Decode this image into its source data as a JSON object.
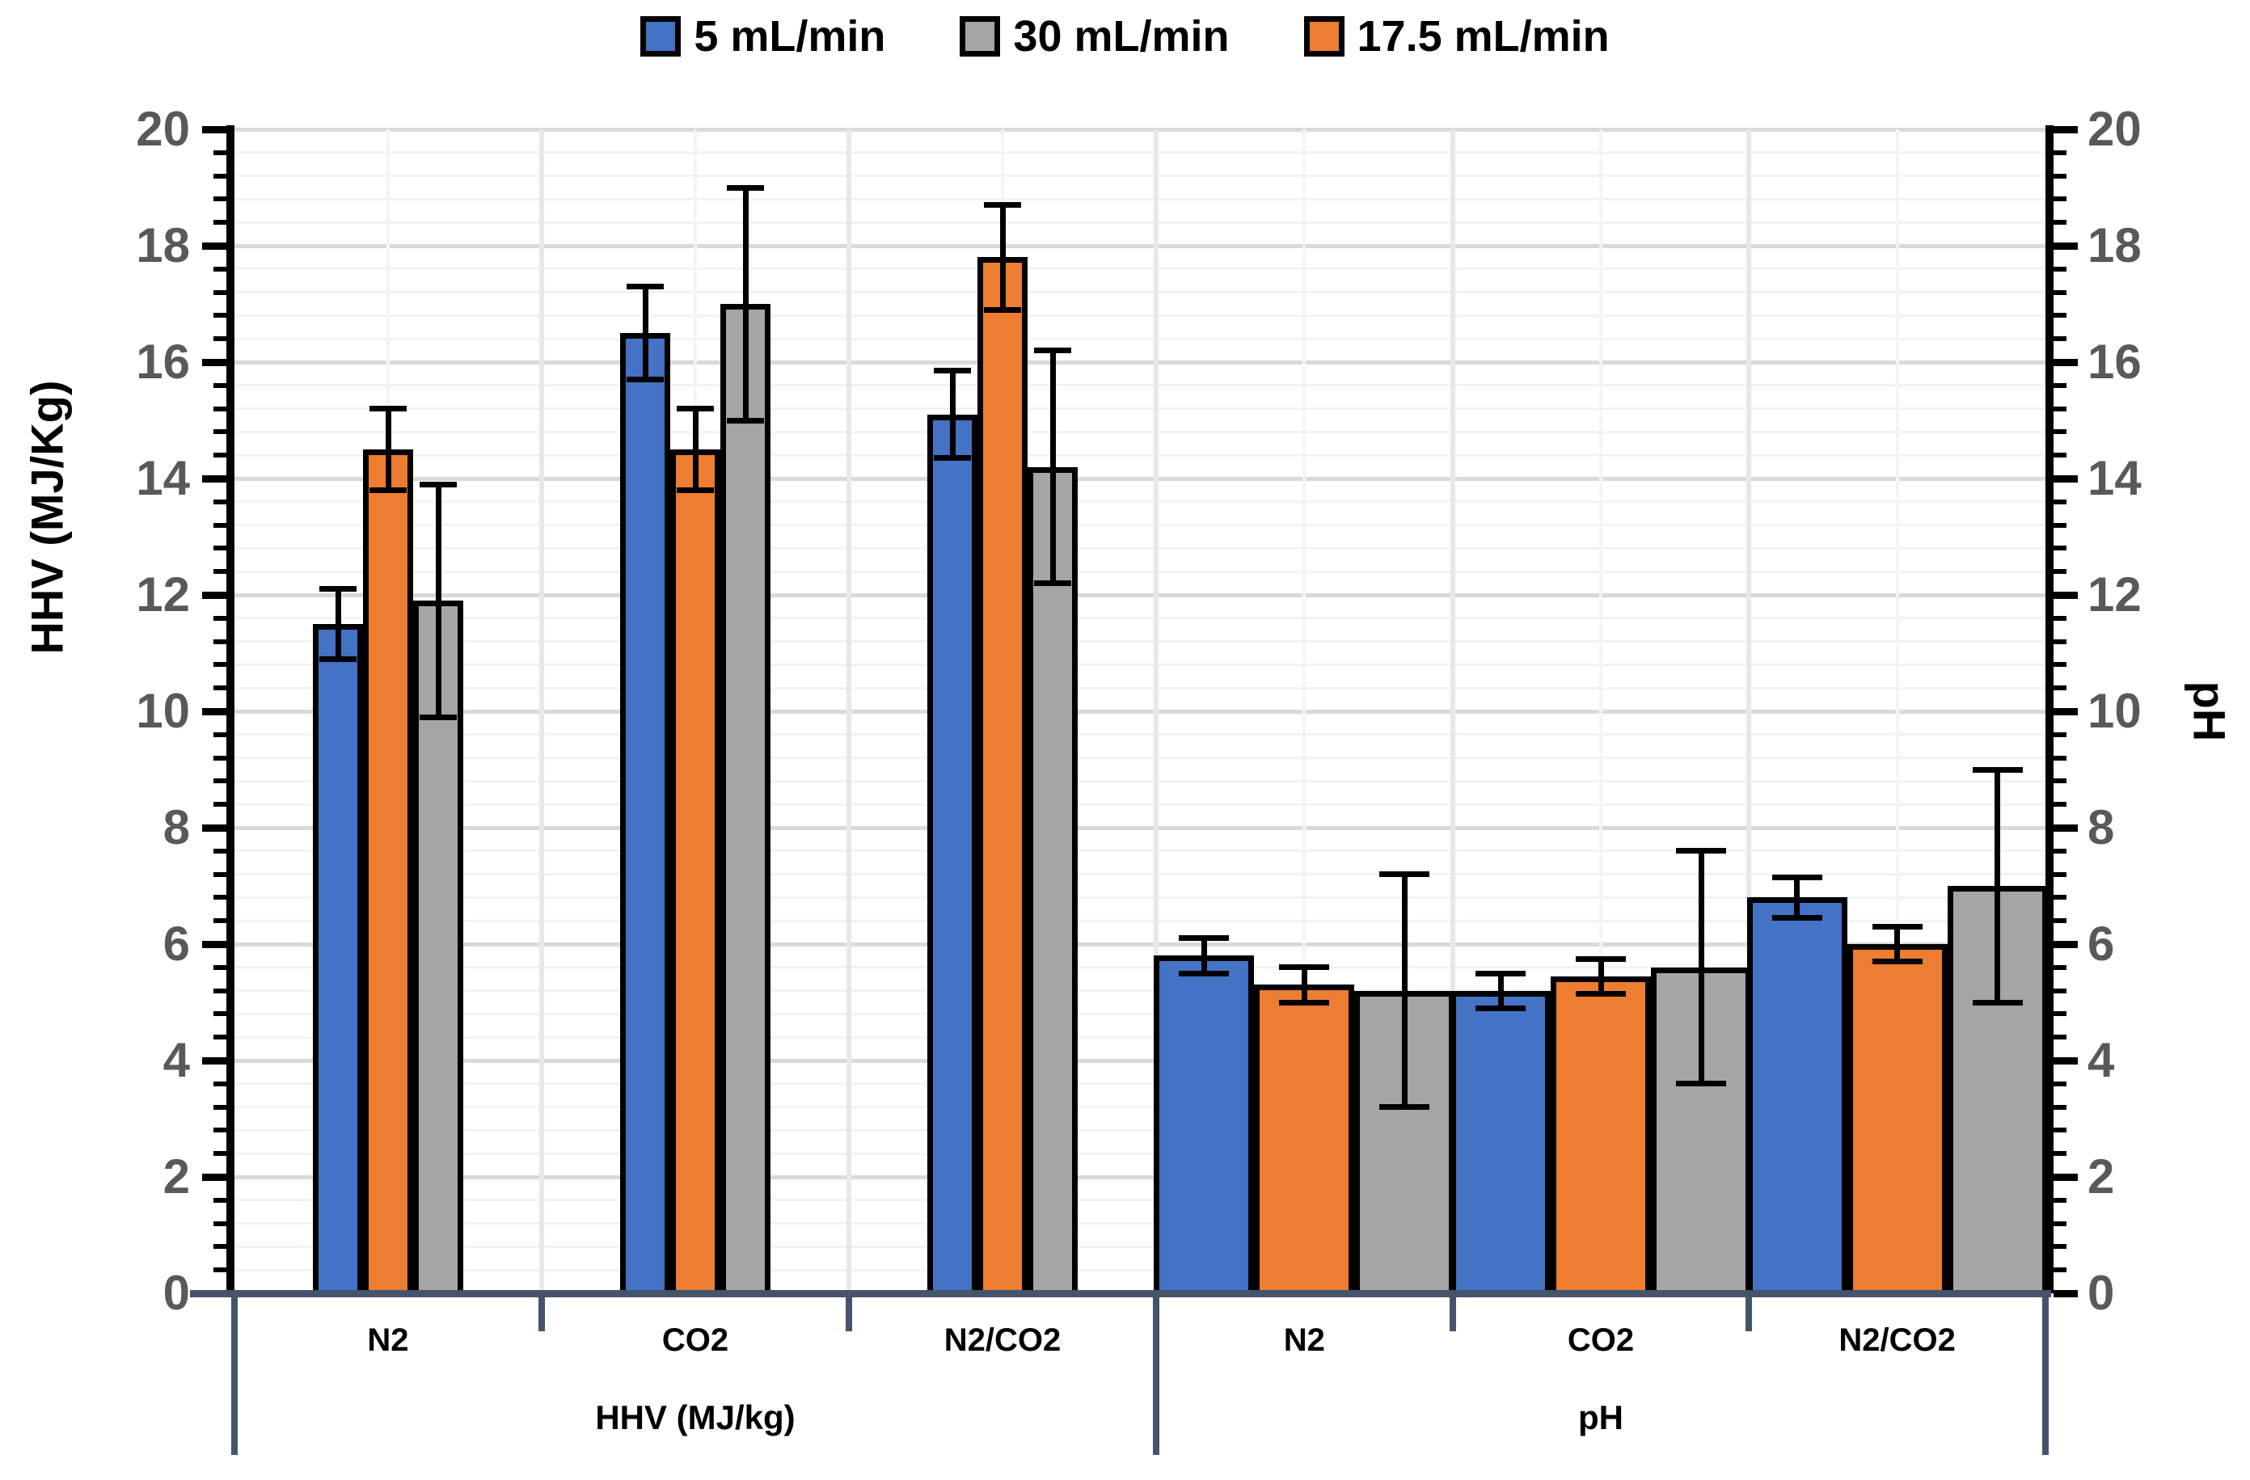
{
  "chart_data": {
    "type": "bar",
    "title": "",
    "legend_position": "top",
    "series": [
      {
        "name": "5 mL/min",
        "color": "#4472C4"
      },
      {
        "name": "30 mL/min",
        "color": "#A5A5A5"
      },
      {
        "name": "17.5 mL/min",
        "color": "#ED7D31"
      }
    ],
    "bar_order": [
      "5 mL/min",
      "17.5 mL/min",
      "30 mL/min"
    ],
    "left_axis": {
      "label": "HHV (MJ/Kg)",
      "min": 0,
      "max": 20,
      "major_unit": 2,
      "minor_unit": 0.4,
      "ticks": [
        20,
        18,
        16,
        14,
        12,
        10,
        8,
        6,
        4,
        2,
        0
      ]
    },
    "right_axis": {
      "label": "pH",
      "min": 0,
      "max": 20,
      "major_unit": 2,
      "minor_unit": 0.4,
      "ticks": [
        20,
        18,
        16,
        14,
        12,
        10,
        8,
        6,
        4,
        2,
        0
      ]
    },
    "x_axis": {
      "sections": [
        {
          "label": "HHV (MJ/kg)",
          "categories": [
            "N2",
            "CO2",
            "N2/CO2"
          ]
        },
        {
          "label": "pH",
          "categories": [
            "N2",
            "CO2",
            "N2/CO2"
          ]
        }
      ]
    },
    "groups": [
      {
        "section": "HHV (MJ/kg)",
        "category": "N2",
        "bars": [
          {
            "series": "5 mL/min",
            "value": 11.5,
            "error": 0.6
          },
          {
            "series": "17.5 mL/min",
            "value": 14.5,
            "error": 0.7
          },
          {
            "series": "30 mL/min",
            "value": 11.9,
            "error": 2.0
          }
        ]
      },
      {
        "section": "HHV (MJ/kg)",
        "category": "CO2",
        "bars": [
          {
            "series": "5 mL/min",
            "value": 16.5,
            "error": 0.8
          },
          {
            "series": "17.5 mL/min",
            "value": 14.5,
            "error": 0.7
          },
          {
            "series": "30 mL/min",
            "value": 17.0,
            "error": 2.0
          }
        ]
      },
      {
        "section": "HHV (MJ/kg)",
        "category": "N2/CO2",
        "bars": [
          {
            "series": "5 mL/min",
            "value": 15.1,
            "error": 0.75
          },
          {
            "series": "17.5 mL/min",
            "value": 17.8,
            "error": 0.9
          },
          {
            "series": "30 mL/min",
            "value": 14.2,
            "error": 2.0
          }
        ]
      },
      {
        "section": "pH",
        "category": "N2",
        "bars": [
          {
            "series": "5 mL/min",
            "value": 5.8,
            "error": 0.3
          },
          {
            "series": "17.5 mL/min",
            "value": 5.3,
            "error": 0.3
          },
          {
            "series": "30 mL/min",
            "value": 5.2,
            "error": 2.0
          }
        ]
      },
      {
        "section": "pH",
        "category": "CO2",
        "bars": [
          {
            "series": "5 mL/min",
            "value": 5.2,
            "error": 0.3
          },
          {
            "series": "17.5 mL/min",
            "value": 5.45,
            "error": 0.3
          },
          {
            "series": "30 mL/min",
            "value": 5.6,
            "error": 2.0
          }
        ]
      },
      {
        "section": "pH",
        "category": "N2/CO2",
        "bars": [
          {
            "series": "5 mL/min",
            "value": 6.8,
            "error": 0.35
          },
          {
            "series": "17.5 mL/min",
            "value": 6.0,
            "error": 0.3
          },
          {
            "series": "30 mL/min",
            "value": 7.0,
            "error": 2.0
          }
        ]
      }
    ],
    "layout_hints": {
      "grid": "on",
      "error_bars": "both-ends-capped"
    },
    "colors": {
      "background": "#FFFFFF",
      "axis_line": "#000000",
      "category_axis": "#44546A",
      "tick_label": "#595959",
      "major_grid": "#D9D9D9",
      "minor_grid": "#F2F2F2",
      "vertical_grid": "#E8E8E8",
      "vertical_grid_minor": "#F4F4F4",
      "bar_border": "#000000",
      "error_bar": "#000000",
      "text": "#000000"
    }
  }
}
